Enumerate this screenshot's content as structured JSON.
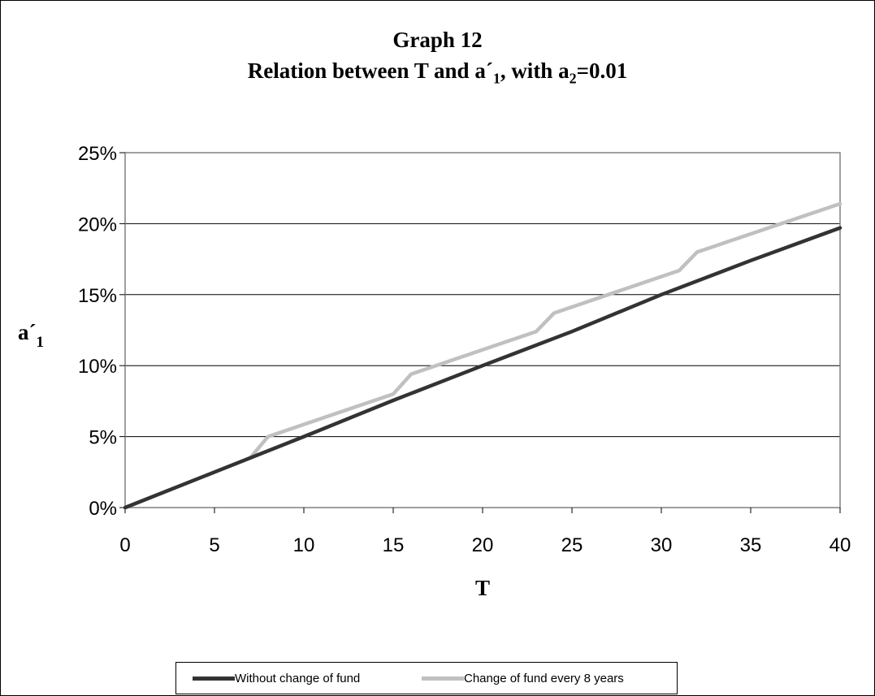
{
  "chart_data": {
    "type": "line",
    "title": "Graph 12",
    "subtitle_parts": {
      "prefix": "Relation between T and a´",
      "sub1": "1",
      "middle": ", with a",
      "sub2": "2",
      "suffix": "=0.01"
    },
    "xlabel": "T",
    "ylabel_parts": {
      "main": "a´",
      "sub": "1"
    },
    "xlim": [
      0,
      40
    ],
    "ylim": [
      0,
      0.25
    ],
    "x_ticks": [
      0,
      5,
      10,
      15,
      20,
      25,
      30,
      35,
      40
    ],
    "y_ticks": [
      0,
      0.05,
      0.1,
      0.15,
      0.2,
      0.25
    ],
    "y_tick_labels": [
      "0%",
      "5%",
      "10%",
      "15%",
      "20%",
      "25%"
    ],
    "grid": "horizontal",
    "legend_position": "bottom",
    "series": [
      {
        "name": "Without change of fund",
        "color": "#333333",
        "x": [
          0,
          5,
          10,
          15,
          20,
          25,
          30,
          35,
          40
        ],
        "y": [
          0,
          0.025,
          0.05,
          0.0755,
          0.1,
          0.124,
          0.15,
          0.174,
          0.197
        ]
      },
      {
        "name": "Change of fund every 8 years",
        "color": "#c0c0c0",
        "x": [
          0,
          7,
          8,
          15,
          16,
          23,
          24,
          31,
          32,
          40
        ],
        "y": [
          0,
          0.035,
          0.05,
          0.08,
          0.094,
          0.124,
          0.137,
          0.167,
          0.18,
          0.214
        ]
      }
    ]
  }
}
